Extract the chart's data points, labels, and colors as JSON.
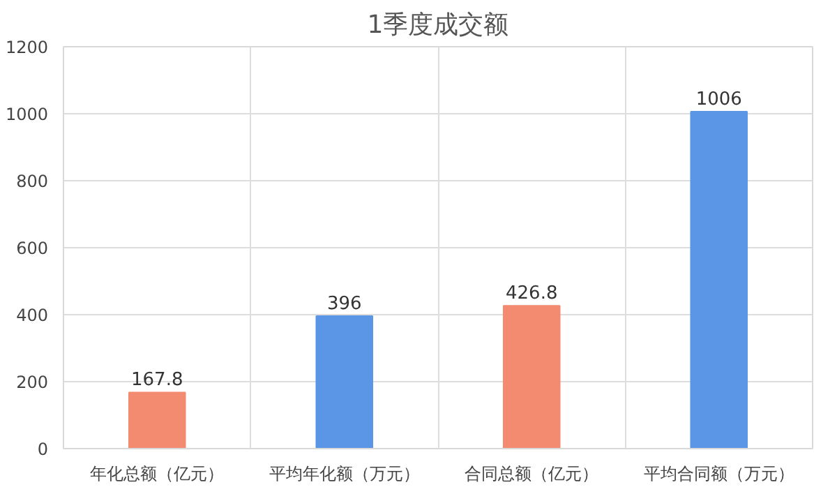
{
  "chart_data": {
    "type": "bar",
    "title": "1季度成交额",
    "categories": [
      "年化总额（亿元）",
      "平均年化额（万元）",
      "合同总额（亿元）",
      "平均合同额（万元）"
    ],
    "values": [
      167.8,
      396,
      426.8,
      1006
    ],
    "colors": [
      "#f28b70",
      "#5b96e6",
      "#f28b70",
      "#5b96e6"
    ],
    "ylim": [
      0,
      1200
    ],
    "yticks": [
      0,
      200,
      400,
      600,
      800,
      1000,
      1200
    ],
    "grid": true,
    "data_labels": true
  }
}
